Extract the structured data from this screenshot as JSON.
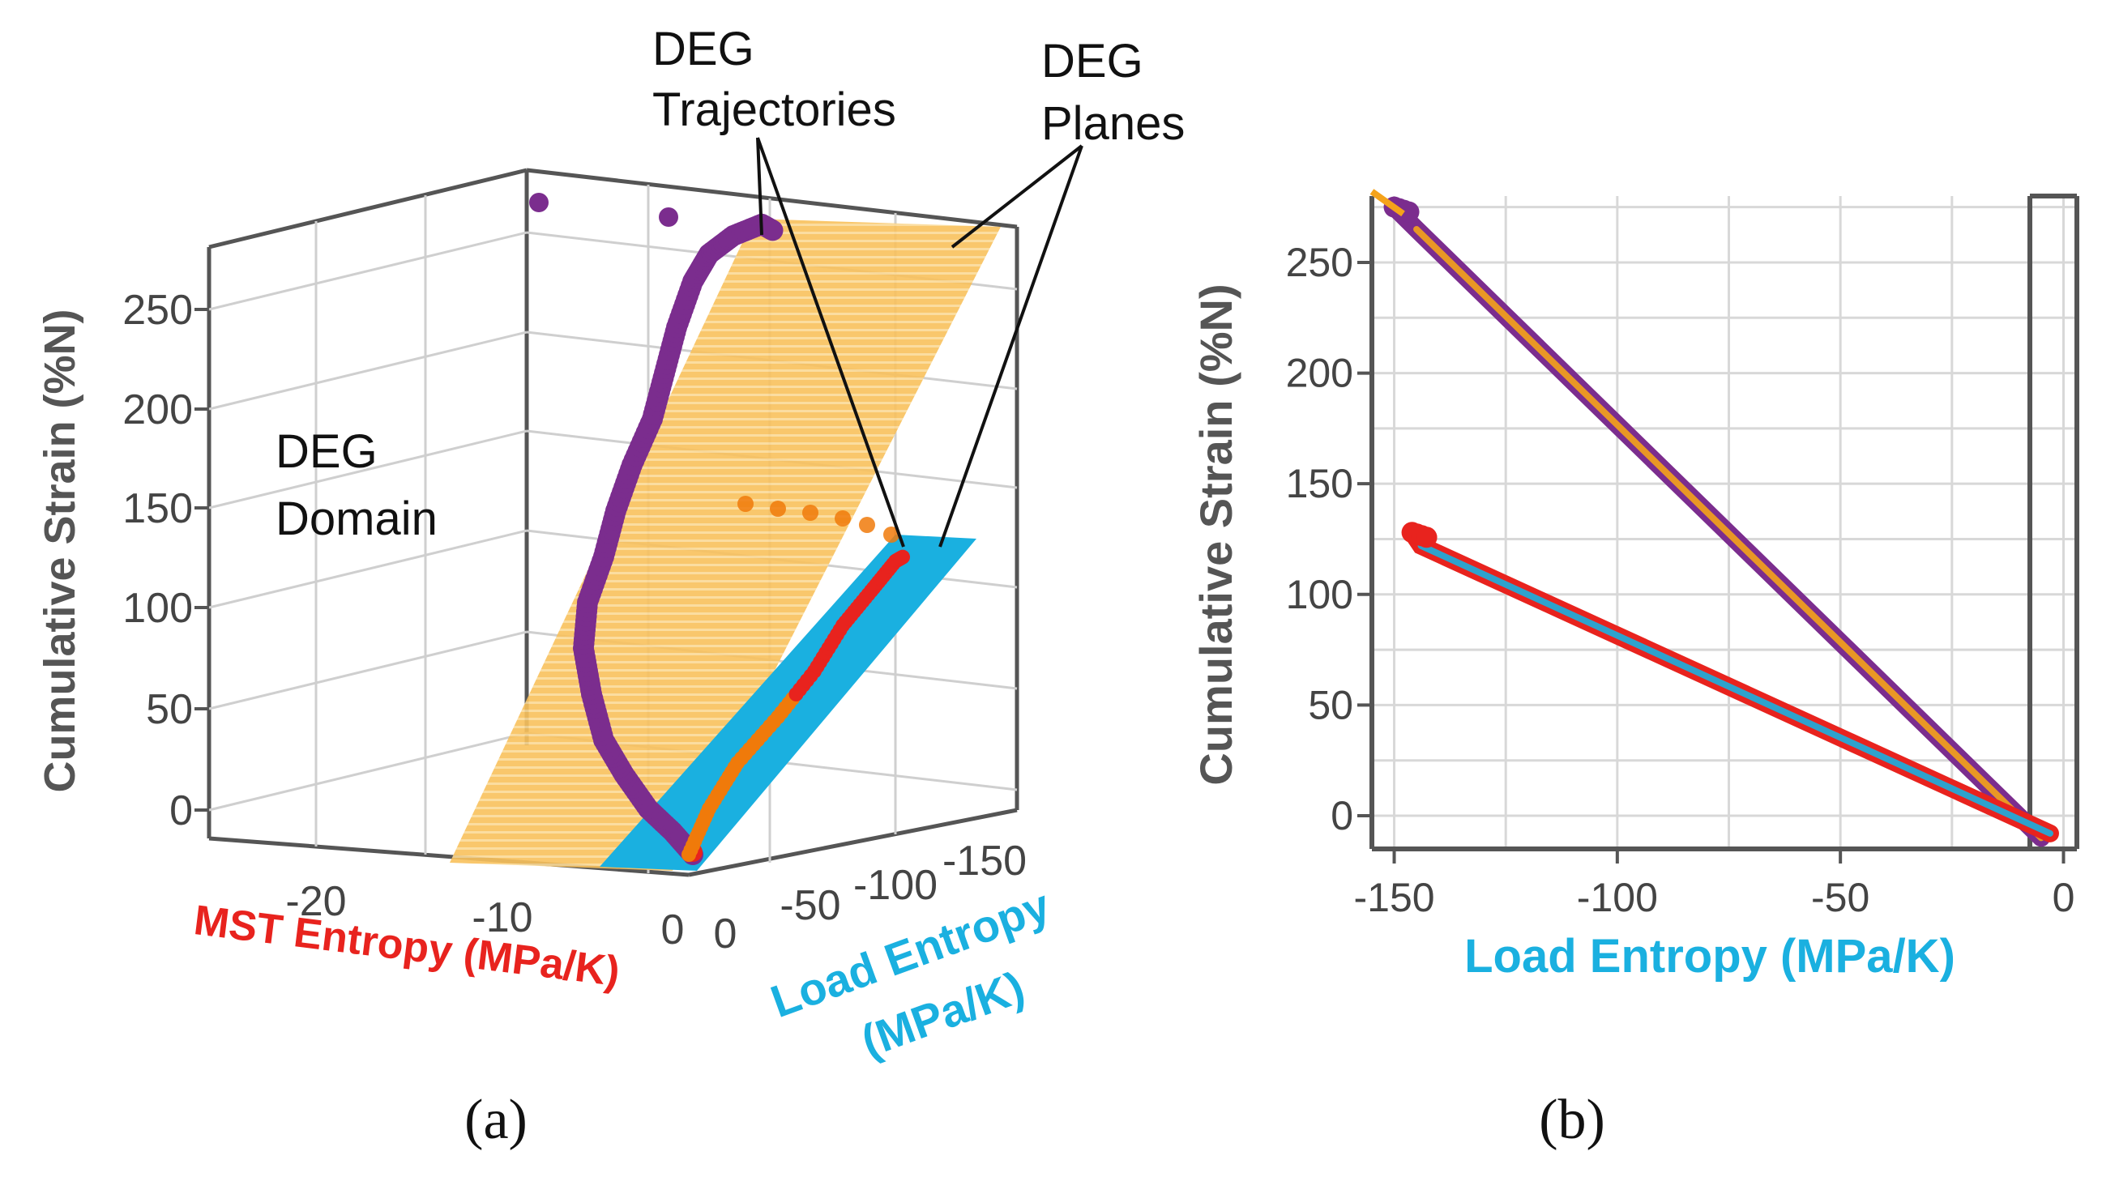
{
  "chart_data": [
    {
      "type": "scatter3d",
      "panel_label": "(a)",
      "zlabel": "Cumulative Strain (%N)",
      "xlabel": "MST Entropy (MPa/K)",
      "ylabel_line1": "Load Entropy",
      "ylabel_line2": "(MPa/K)",
      "z_ticks": [
        "0",
        "50",
        "100",
        "150",
        "200",
        "250"
      ],
      "x_ticks": [
        "-20",
        "-10",
        "0"
      ],
      "y_ticks": [
        "0",
        "-50",
        "-100",
        "-150"
      ],
      "xlim": [
        -25,
        1
      ],
      "ylim": [
        0,
        -150
      ],
      "zlim": [
        0,
        280
      ],
      "domain_label_line1": "DEG",
      "domain_label_line2": "Domain",
      "annotation_trajectories_line1": "DEG",
      "annotation_trajectories_line2": "Trajectories",
      "annotation_planes_line1": "DEG",
      "annotation_planes_line2": "Planes",
      "colors": {
        "purple": "#7b2d8e",
        "orange": "#f5a31a",
        "red": "#e8231e",
        "blue": "#1ab0e0",
        "dark_orange": "#f07a0a"
      },
      "series": [
        {
          "name": "purple trajectory (MST entropy vs strain)",
          "color": "purple",
          "z": [
            0,
            10,
            20,
            35,
            50,
            70,
            90,
            110,
            130,
            150,
            170,
            190,
            210,
            230,
            250,
            262,
            270,
            275,
            272
          ]
        },
        {
          "name": "red/orange trajectory (load entropy vs strain)",
          "color": "red",
          "z": [
            0,
            20,
            40,
            60,
            80,
            100,
            115,
            128,
            130
          ]
        }
      ]
    },
    {
      "type": "line",
      "panel_label": "(b)",
      "xlabel": "Load Entropy (MPa/K)",
      "ylabel": "Cumulative Strain (%N)",
      "xlim": [
        -155,
        3
      ],
      "ylim": [
        -15,
        280
      ],
      "x_ticks": [
        "-150",
        "-100",
        "-50",
        "0"
      ],
      "y_ticks": [
        "0",
        "50",
        "100",
        "150",
        "200",
        "250"
      ],
      "series": [
        {
          "name": "purple/orange",
          "color": "#7b2d8e",
          "highlight": "#f5a31a",
          "x": [
            -150,
            -145,
            -5
          ],
          "y": [
            275,
            265,
            -10
          ]
        },
        {
          "name": "red/blue",
          "color": "#e8231e",
          "highlight": "#1ab0e0",
          "x": [
            -146,
            -144,
            -3
          ],
          "y": [
            128,
            122,
            -8
          ]
        }
      ]
    }
  ]
}
